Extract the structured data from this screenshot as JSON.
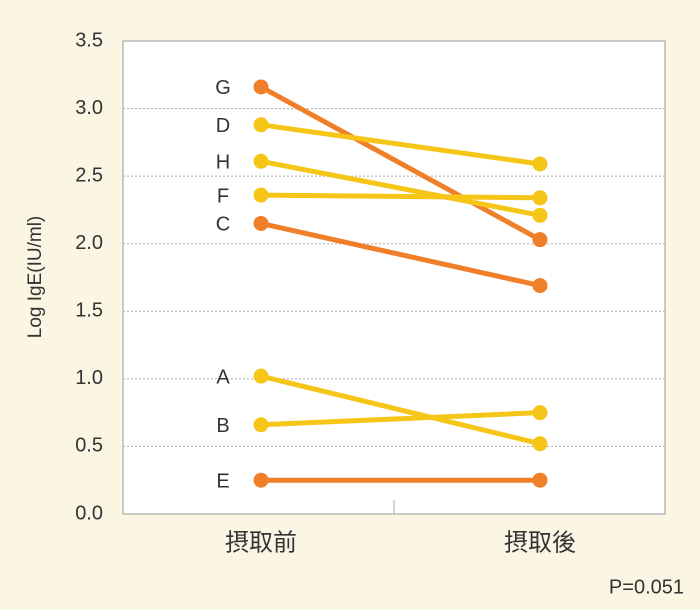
{
  "chart_data": {
    "type": "line",
    "y_label": "Log IgE(IU/ml)",
    "note": "P=0.051",
    "categories": [
      "摂取前",
      "摂取後"
    ],
    "ylim": [
      0,
      3.5
    ],
    "yticks": [
      {
        "value": 0,
        "label": "0.0"
      },
      0.5,
      {
        "value": 1,
        "label": "1.0"
      },
      1.5,
      {
        "value": 2,
        "label": "2.0"
      },
      2.5,
      {
        "value": 3,
        "label": "3.0"
      },
      3.5
    ],
    "grid": true,
    "series": [
      {
        "name": "G",
        "color": "#f07f2a",
        "values": [
          3.16,
          2.03
        ]
      },
      {
        "name": "D",
        "color": "#f5c518",
        "values": [
          2.88,
          2.59
        ]
      },
      {
        "name": "H",
        "color": "#f5c518",
        "values": [
          2.61,
          2.21
        ]
      },
      {
        "name": "F",
        "color": "#f5c518",
        "values": [
          2.36,
          2.34
        ]
      },
      {
        "name": "C",
        "color": "#f07f2a",
        "values": [
          2.15,
          1.69
        ]
      },
      {
        "name": "A",
        "color": "#f5c518",
        "values": [
          1.02,
          0.52
        ]
      },
      {
        "name": "B",
        "color": "#f5c518",
        "values": [
          0.66,
          0.75
        ]
      },
      {
        "name": "E",
        "color": "#f07f2a",
        "values": [
          0.25,
          0.25
        ]
      }
    ]
  }
}
